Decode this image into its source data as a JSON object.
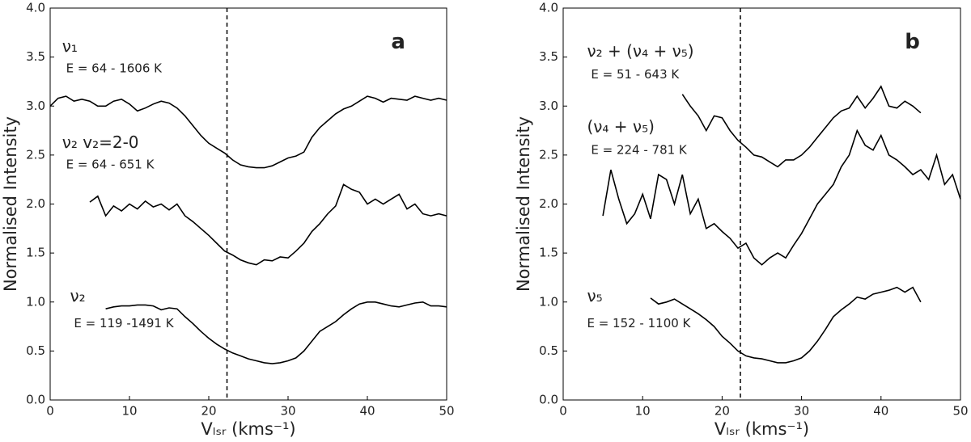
{
  "chart_data": [
    {
      "type": "line",
      "xlabel": "Vₗₛᵣ (kms⁻¹)",
      "ylabel": "Normalised Intensity",
      "xlim": [
        0,
        50
      ],
      "ylim": [
        0,
        4
      ],
      "xticks": [
        0,
        10,
        20,
        30,
        40,
        50
      ],
      "yticks": [
        {
          "value": 0,
          "label": "0.0"
        },
        {
          "value": 0.5,
          "label": "0.5"
        },
        {
          "value": 1,
          "label": "1.0"
        },
        {
          "value": 1.5,
          "label": "1.5"
        },
        {
          "value": 2,
          "label": "2.0"
        },
        {
          "value": 2.5,
          "label": "2.5"
        },
        {
          "value": 3,
          "label": "3.0"
        },
        {
          "value": 3.5,
          "label": "3.5"
        },
        {
          "value": 4,
          "label": "4.0"
        }
      ],
      "vline": 22.3,
      "annotations": [
        "ν₁",
        "E = 64 - 1606 K",
        "ν₂ v₂=2-0",
        "E = 64 - 651 K",
        "ν₂",
        "E = 119 -1491 K",
        "a"
      ],
      "series": [
        {
          "color": "#000000",
          "x": [
            0,
            1,
            2,
            3,
            4,
            5,
            6,
            7,
            8,
            9,
            10,
            11,
            12,
            13,
            14,
            15,
            16,
            17,
            18,
            19,
            20,
            21,
            22,
            23,
            24,
            25,
            26,
            27,
            28,
            29,
            30,
            31,
            32,
            33,
            34,
            35,
            36,
            37,
            38,
            39,
            40,
            41,
            42,
            43,
            44,
            45,
            46,
            47,
            48,
            49,
            50
          ],
          "values": [
            3.0,
            3.08,
            3.1,
            3.05,
            3.07,
            3.05,
            3.0,
            3.0,
            3.05,
            3.07,
            3.02,
            2.95,
            2.98,
            3.02,
            3.05,
            3.03,
            2.98,
            2.9,
            2.8,
            2.7,
            2.62,
            2.57,
            2.52,
            2.45,
            2.4,
            2.38,
            2.37,
            2.37,
            2.39,
            2.43,
            2.47,
            2.49,
            2.53,
            2.68,
            2.78,
            2.85,
            2.92,
            2.97,
            3.0,
            3.05,
            3.1,
            3.08,
            3.04,
            3.08,
            3.07,
            3.06,
            3.1,
            3.08,
            3.06,
            3.08,
            3.06
          ]
        },
        {
          "color": "#000000",
          "x": [
            5,
            6,
            7,
            8,
            9,
            10,
            11,
            12,
            13,
            14,
            15,
            16,
            17,
            18,
            19,
            20,
            21,
            22,
            23,
            24,
            25,
            26,
            27,
            28,
            29,
            30,
            31,
            32,
            33,
            34,
            35,
            36,
            37,
            38,
            39,
            40,
            41,
            42,
            43,
            44,
            45,
            46,
            47,
            48,
            49,
            50
          ],
          "values": [
            2.02,
            2.08,
            1.88,
            1.98,
            1.93,
            2.0,
            1.95,
            2.03,
            1.97,
            2.0,
            1.94,
            2.0,
            1.88,
            1.82,
            1.75,
            1.68,
            1.6,
            1.52,
            1.48,
            1.43,
            1.4,
            1.38,
            1.43,
            1.42,
            1.46,
            1.45,
            1.52,
            1.6,
            1.72,
            1.8,
            1.9,
            1.98,
            2.2,
            2.15,
            2.12,
            2.0,
            2.05,
            2.0,
            2.05,
            2.1,
            1.95,
            2.0,
            1.9,
            1.88,
            1.9,
            1.88
          ]
        },
        {
          "color": "#000000",
          "x": [
            7,
            8,
            9,
            10,
            11,
            12,
            13,
            14,
            15,
            16,
            17,
            18,
            19,
            20,
            21,
            22,
            23,
            24,
            25,
            26,
            27,
            28,
            29,
            30,
            31,
            32,
            33,
            34,
            35,
            36,
            37,
            38,
            39,
            40,
            41,
            42,
            43,
            44,
            45,
            46,
            47,
            48,
            49,
            50
          ],
          "values": [
            0.93,
            0.95,
            0.96,
            0.96,
            0.97,
            0.97,
            0.96,
            0.92,
            0.94,
            0.93,
            0.85,
            0.78,
            0.7,
            0.63,
            0.57,
            0.52,
            0.48,
            0.45,
            0.42,
            0.4,
            0.38,
            0.37,
            0.38,
            0.4,
            0.43,
            0.5,
            0.6,
            0.7,
            0.75,
            0.8,
            0.87,
            0.93,
            0.98,
            1.0,
            1.0,
            0.98,
            0.96,
            0.95,
            0.97,
            0.99,
            1.0,
            0.96,
            0.96,
            0.95
          ]
        }
      ]
    },
    {
      "type": "line",
      "xlabel": "Vₗₛᵣ (kms⁻¹)",
      "ylabel": "Normalised Intensity",
      "xlim": [
        0,
        50
      ],
      "ylim": [
        0,
        4
      ],
      "xticks": [
        0,
        10,
        20,
        30,
        40,
        50
      ],
      "yticks": [
        {
          "value": 0,
          "label": "0.0"
        },
        {
          "value": 0.5,
          "label": "0.5"
        },
        {
          "value": 1,
          "label": "1.0"
        },
        {
          "value": 1.5,
          "label": "1.5"
        },
        {
          "value": 2,
          "label": "2.0"
        },
        {
          "value": 2.5,
          "label": "2.5"
        },
        {
          "value": 3,
          "label": "3.0"
        },
        {
          "value": 3.5,
          "label": "3.5"
        },
        {
          "value": 4,
          "label": "4.0"
        }
      ],
      "vline": 22.3,
      "annotations": [
        "ν₂ + (ν₄ + ν₅)",
        "E = 51 - 643 K",
        "(ν₄ + ν₅)",
        "E = 224 - 781 K",
        "ν₅",
        "E = 152 - 1100 K",
        "b"
      ],
      "series": [
        {
          "color": "#000000",
          "x": [
            15,
            16,
            17,
            18,
            19,
            20,
            21,
            22,
            23,
            24,
            25,
            26,
            27,
            28,
            29,
            30,
            31,
            32,
            33,
            34,
            35,
            36,
            37,
            38,
            39,
            40,
            41,
            42,
            43,
            44,
            45
          ],
          "values": [
            3.12,
            3.0,
            2.9,
            2.75,
            2.9,
            2.88,
            2.75,
            2.65,
            2.58,
            2.5,
            2.48,
            2.43,
            2.38,
            2.45,
            2.45,
            2.5,
            2.58,
            2.68,
            2.78,
            2.88,
            2.95,
            2.98,
            3.1,
            2.98,
            3.08,
            3.2,
            3.0,
            2.98,
            3.05,
            3.0,
            2.93
          ]
        },
        {
          "color": "#000000",
          "x": [
            5,
            6,
            7,
            8,
            9,
            10,
            11,
            12,
            13,
            14,
            15,
            16,
            17,
            18,
            19,
            20,
            21,
            22,
            23,
            24,
            25,
            26,
            27,
            28,
            29,
            30,
            31,
            32,
            33,
            34,
            35,
            36,
            37,
            38,
            39,
            40,
            41,
            42,
            43,
            44,
            45,
            46,
            47,
            48,
            49,
            50
          ],
          "values": [
            1.88,
            2.35,
            2.05,
            1.8,
            1.9,
            2.1,
            1.85,
            2.3,
            2.25,
            2.0,
            2.3,
            1.9,
            2.05,
            1.75,
            1.8,
            1.72,
            1.65,
            1.55,
            1.6,
            1.45,
            1.38,
            1.45,
            1.5,
            1.45,
            1.58,
            1.7,
            1.85,
            2.0,
            2.1,
            2.2,
            2.38,
            2.5,
            2.75,
            2.6,
            2.55,
            2.7,
            2.5,
            2.45,
            2.38,
            2.3,
            2.35,
            2.25,
            2.5,
            2.2,
            2.3,
            2.05
          ]
        },
        {
          "color": "#000000",
          "x": [
            11,
            12,
            13,
            14,
            15,
            16,
            17,
            18,
            19,
            20,
            21,
            22,
            23,
            24,
            25,
            26,
            27,
            28,
            29,
            30,
            31,
            32,
            33,
            34,
            35,
            36,
            37,
            38,
            39,
            40,
            41,
            42,
            43,
            44,
            45
          ],
          "values": [
            1.04,
            0.98,
            1.0,
            1.03,
            0.98,
            0.93,
            0.88,
            0.82,
            0.75,
            0.65,
            0.58,
            0.5,
            0.45,
            0.43,
            0.42,
            0.4,
            0.38,
            0.38,
            0.4,
            0.43,
            0.5,
            0.6,
            0.72,
            0.85,
            0.92,
            0.98,
            1.05,
            1.03,
            1.08,
            1.1,
            1.12,
            1.15,
            1.1,
            1.15,
            1.0
          ]
        }
      ]
    }
  ]
}
